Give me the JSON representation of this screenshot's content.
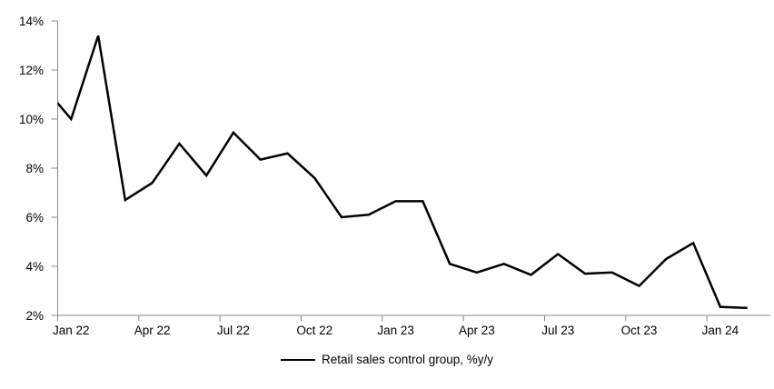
{
  "page": {
    "background": "#ffffff"
  },
  "legend": {
    "label": "Retail sales control group, %y/y"
  },
  "chart_data": {
    "type": "line",
    "categories": [
      "Dec 21",
      "Jan 22",
      "Feb 22",
      "Mar 22",
      "Apr 22",
      "May 22",
      "Jun 22",
      "Jul 22",
      "Aug 22",
      "Sep 22",
      "Oct 22",
      "Nov 22",
      "Dec 22",
      "Jan 23",
      "Feb 23",
      "Mar 23",
      "Apr 23",
      "May 23",
      "Jun 23",
      "Jul 23",
      "Aug 23",
      "Sep 23",
      "Oct 23",
      "Nov 23",
      "Dec 23",
      "Jan 24",
      "Feb 24"
    ],
    "series": [
      {
        "name": "Retail sales control group, %y/y",
        "color": "#000000",
        "values": [
          11.3,
          10.0,
          13.4,
          6.7,
          7.4,
          9.0,
          7.7,
          9.45,
          8.35,
          8.6,
          7.6,
          6.0,
          6.1,
          6.65,
          6.65,
          4.1,
          3.75,
          4.1,
          3.65,
          4.5,
          3.7,
          3.75,
          3.2,
          4.3,
          4.95,
          2.35,
          2.3
        ]
      }
    ],
    "ylim": [
      2,
      14
    ],
    "ytick_step": 2,
    "ytick_labels": [
      "2%",
      "4%",
      "6%",
      "8%",
      "10%",
      "12%",
      "14%"
    ],
    "xtick_labels": [
      "Jan 22",
      "Apr 22",
      "Jul 22",
      "Oct 22",
      "Jan 23",
      "Apr 23",
      "Jul 23",
      "Oct 23",
      "Jan 24"
    ],
    "xtick_every_months": 3,
    "grid": false,
    "legend_position": "bottom",
    "axis_color": "#898989",
    "first_point_clipped_at_left_edge": true
  }
}
